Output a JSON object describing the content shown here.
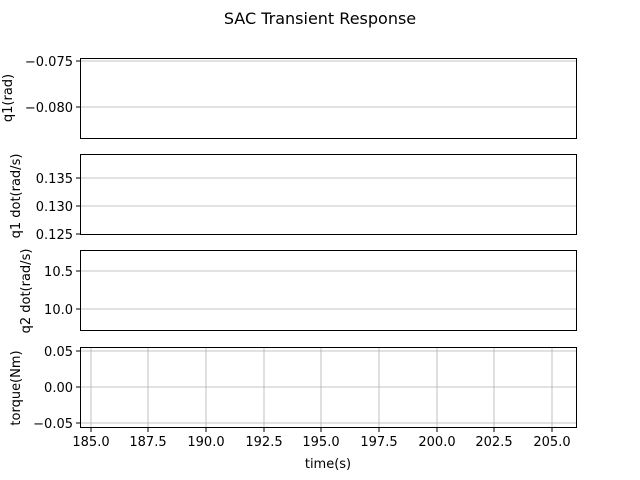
{
  "chart_data": {
    "title": "SAC Transient Response",
    "xlabel": "time(s)",
    "x_ticks": [
      "185.0",
      "187.5",
      "190.0",
      "192.5",
      "195.0",
      "197.5",
      "200.0",
      "202.5",
      "205.0"
    ],
    "panels": [
      {
        "type": "line",
        "ylabel": "q1(rad)",
        "y_ticks": [
          "-0.075",
          "-0.080"
        ],
        "grid": true
      },
      {
        "type": "line",
        "ylabel": "q1 dot(rad/s)",
        "y_ticks": [
          "0.135",
          "0.130",
          "0.125"
        ],
        "grid": true
      },
      {
        "type": "line",
        "ylabel": "q2 dot(rad/s)",
        "y_ticks": [
          "10.5",
          "10.0"
        ],
        "grid": true
      },
      {
        "type": "line",
        "ylabel": "torque(Nm)",
        "y_ticks": [
          "0.05",
          "0.00",
          "-0.05"
        ],
        "grid": true
      }
    ]
  }
}
